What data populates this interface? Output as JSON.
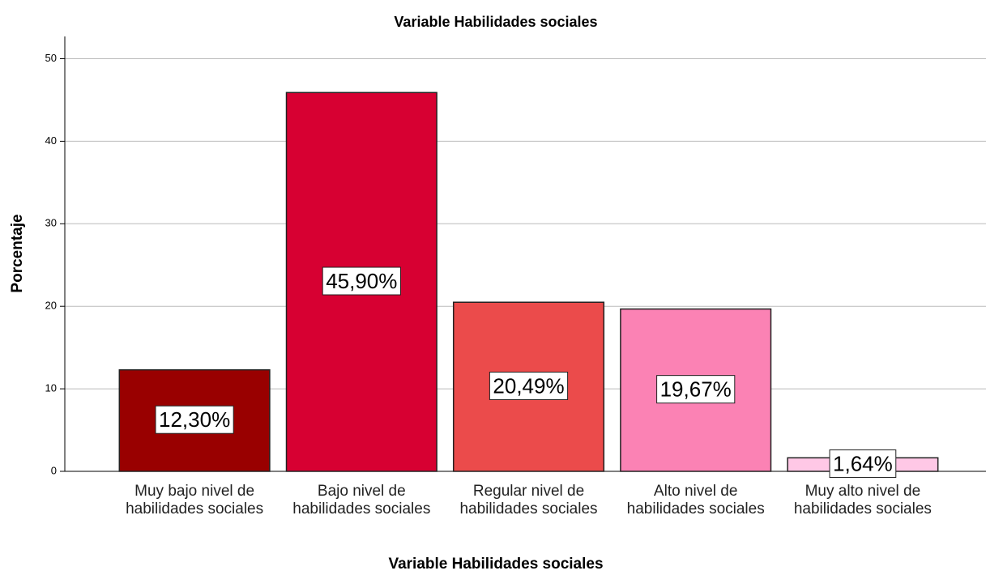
{
  "chart_data": {
    "type": "bar",
    "title": "Variable Habilidades sociales",
    "x_label": "Variable Habilidades sociales",
    "y_label": "Porcentaje",
    "categories": [
      "Muy bajo nivel de habilidades sociales",
      "Bajo nivel de habilidades sociales",
      "Regular nivel de habilidades sociales",
      "Alto nivel de habilidades sociales",
      "Muy alto nivel de habilidades sociales"
    ],
    "values": [
      12.3,
      45.9,
      20.49,
      19.67,
      1.64
    ],
    "value_labels": [
      "12,30%",
      "45,90%",
      "20,49%",
      "19,67%",
      "1,64%"
    ],
    "colors": [
      "#990000",
      "#d70032",
      "#eb4b4b",
      "#fb82b4",
      "#ffc8e6"
    ],
    "ylim": [
      0,
      52.7
    ],
    "yticks": [
      0,
      10,
      20,
      30,
      40,
      50
    ],
    "grid": true
  }
}
